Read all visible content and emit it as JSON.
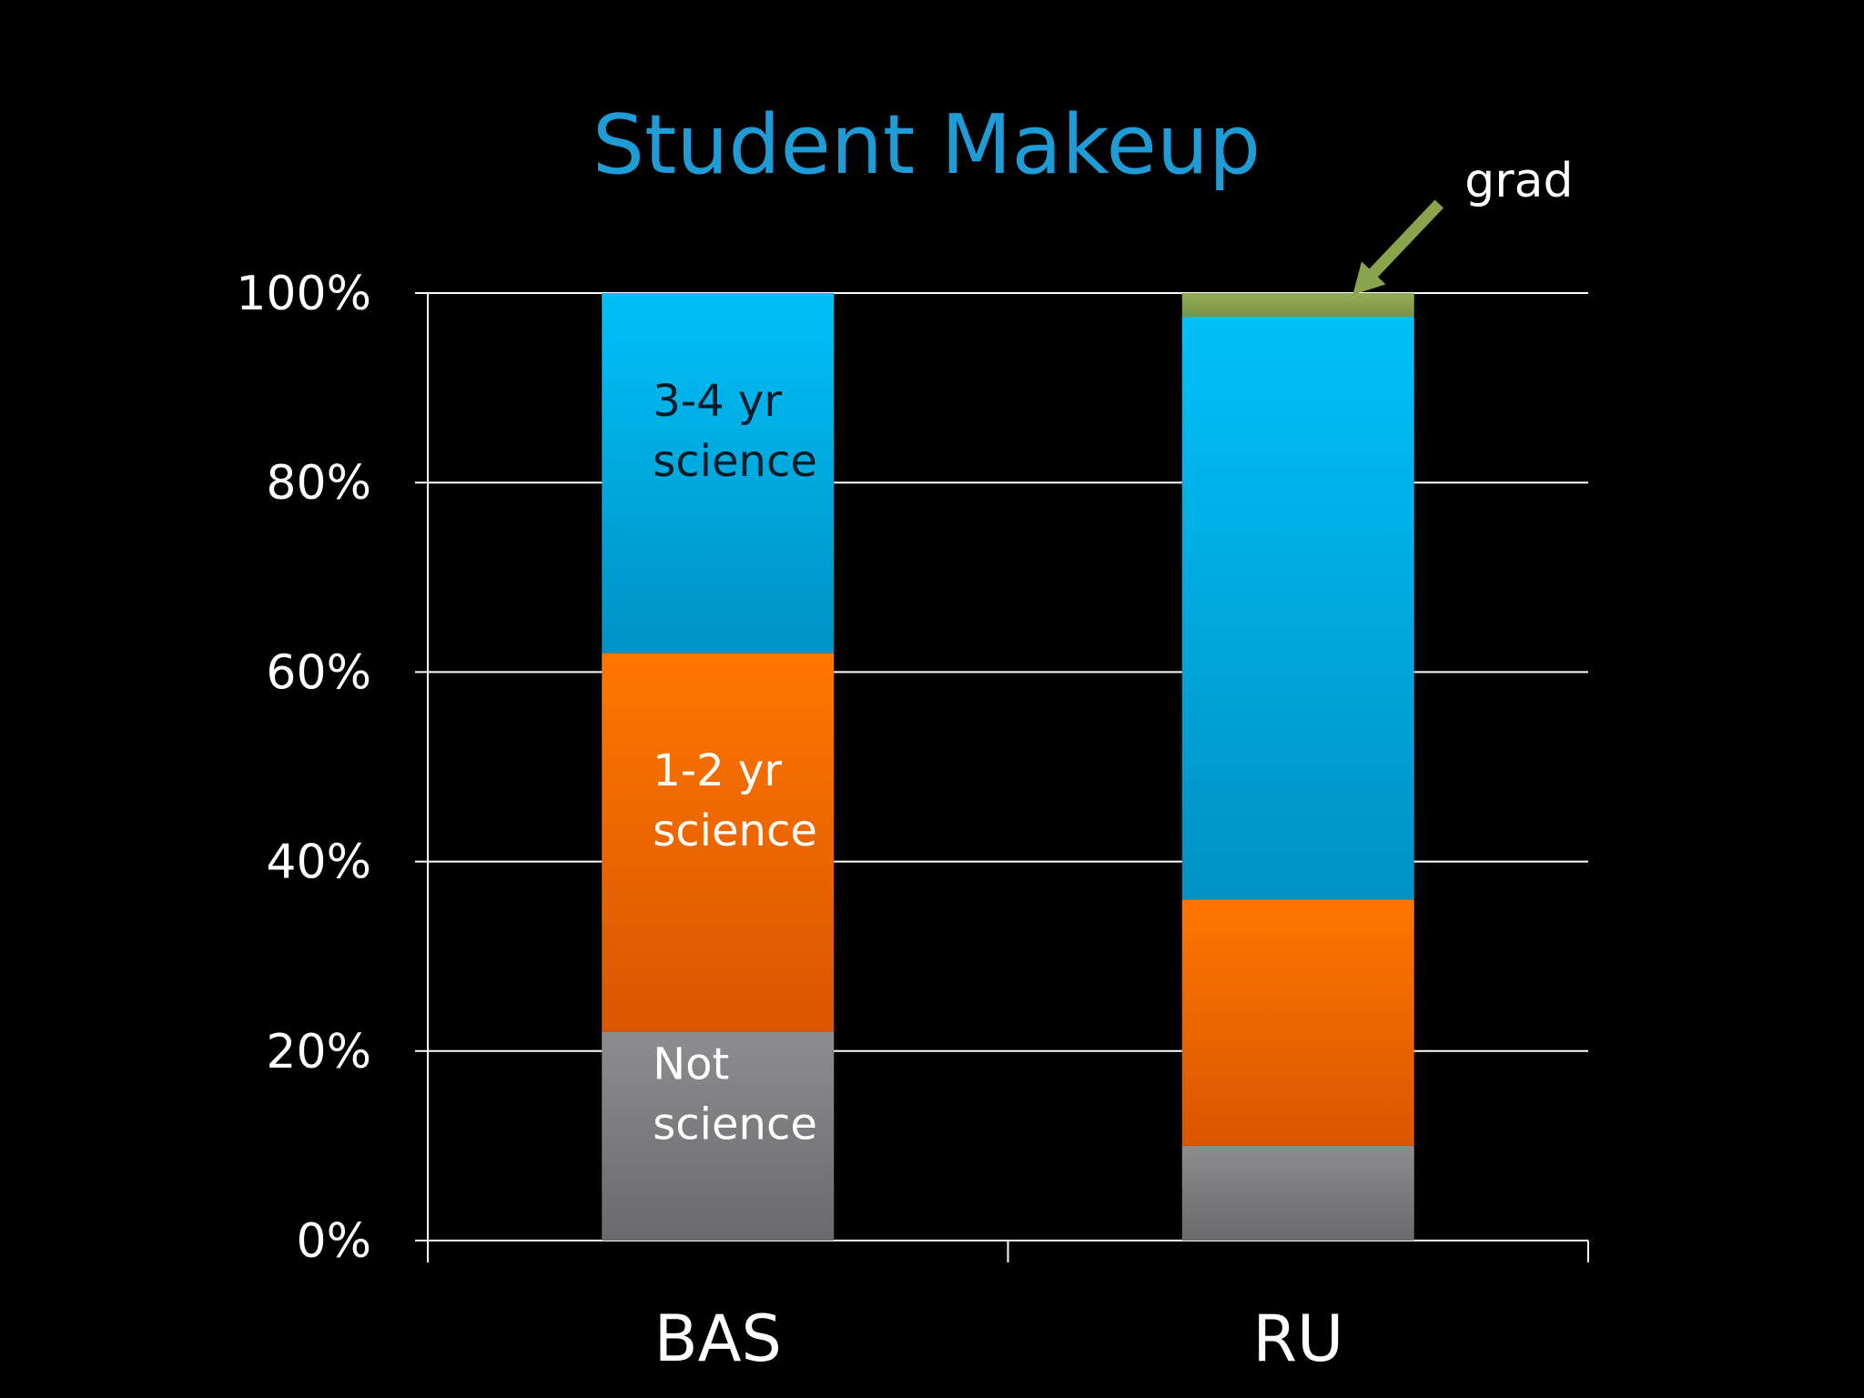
{
  "chart_data": {
    "type": "bar",
    "stacked": true,
    "title": "Student Makeup",
    "categories": [
      "BAS",
      "RU"
    ],
    "ylim": [
      0,
      100
    ],
    "yticks": [
      "0%",
      "20%",
      "40%",
      "60%",
      "80%",
      "100%"
    ],
    "grid": true,
    "series": [
      {
        "key": "not",
        "label_lines": [
          "Not",
          "science"
        ],
        "values": [
          22,
          10
        ],
        "color": "#8a8a8c",
        "label_bar": 0,
        "label_dark": false
      },
      {
        "key": "sci12",
        "label_lines": [
          "1-2 yr",
          "science"
        ],
        "values": [
          40,
          26
        ],
        "color": "#ff7300",
        "label_bar": 0,
        "label_dark": false
      },
      {
        "key": "sci34",
        "label_lines": [
          "3-4 yr",
          "science"
        ],
        "values": [
          38,
          61.5
        ],
        "color": "#00bef5",
        "label_bar": 0,
        "label_dark": true
      },
      {
        "key": "grad",
        "label_lines": [],
        "values": [
          0,
          2.5
        ],
        "color": "#8aa44e",
        "label_bar": null,
        "label_dark": false
      }
    ],
    "annotation": {
      "text": "grad",
      "bar": 1,
      "series": "grad",
      "color": "#8aa44e"
    }
  }
}
